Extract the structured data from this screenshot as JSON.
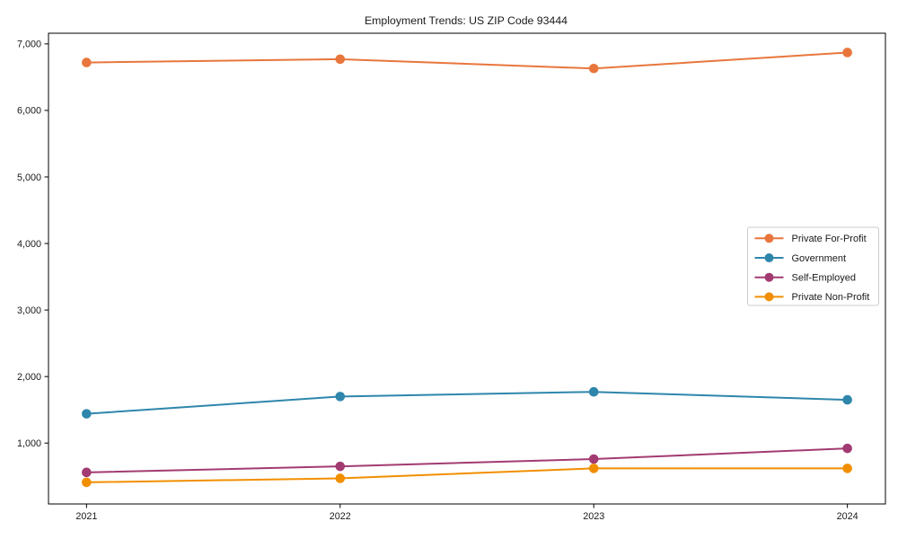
{
  "chart_data": {
    "type": "line",
    "title": "Employment Trends: US ZIP Code 93444",
    "xlabel": "",
    "ylabel": "",
    "categories": [
      "2021",
      "2022",
      "2023",
      "2024"
    ],
    "x_values": [
      2021,
      2022,
      2023,
      2024
    ],
    "series": [
      {
        "name": "Private For-Profit",
        "color": "#E8763C",
        "values": [
          6720,
          6770,
          6630,
          6870
        ]
      },
      {
        "name": "Government",
        "color": "#2E86AB",
        "values": [
          1440,
          1700,
          1770,
          1650
        ]
      },
      {
        "name": "Self-Employed",
        "color": "#A23B72",
        "values": [
          560,
          650,
          760,
          920
        ]
      },
      {
        "name": "Private Non-Profit",
        "color": "#F18F01",
        "values": [
          410,
          470,
          620,
          620
        ]
      }
    ],
    "yticks": [
      1000,
      2000,
      3000,
      4000,
      5000,
      6000,
      7000
    ],
    "ytick_labels": [
      "1,000",
      "2,000",
      "3,000",
      "4,000",
      "5,000",
      "6,000",
      "7,000"
    ],
    "ylim": [
      85,
      7160
    ],
    "xlim": [
      2020.85,
      2024.15
    ],
    "grid": false,
    "legend_position": "center right",
    "marker": "circle",
    "frame_color": "#000000",
    "legend_border_color": "#cccccc",
    "background_color": "#ffffff"
  }
}
